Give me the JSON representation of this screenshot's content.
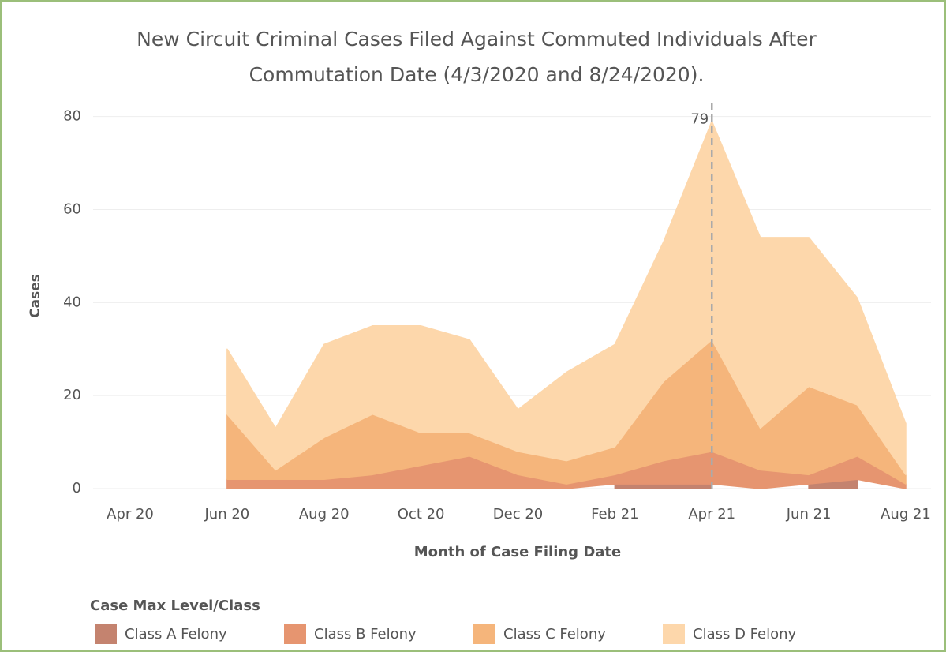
{
  "chart_data": {
    "type": "stacked_area",
    "title": "New Circuit Criminal Cases Filed Against Commuted Individuals After",
    "subtitle": "Commutation Date (4/3/2020 and 8/24/2020).",
    "x_label": "Month of Case Filing Date",
    "y_label": "Cases",
    "legend_title": "Case Max Level/Class",
    "categories": [
      "Apr 20",
      null,
      "Jun 20",
      null,
      "Aug 20",
      null,
      "Oct 20",
      null,
      "Dec 20",
      null,
      "Feb 21",
      null,
      "Apr 21",
      null,
      "Jun 21",
      null,
      "Aug 21"
    ],
    "series": [
      {
        "name": "Class A Felony",
        "color": "#c4836f",
        "values": [
          null,
          null,
          null,
          null,
          null,
          null,
          null,
          null,
          null,
          null,
          1,
          1,
          1,
          null,
          1,
          2,
          null
        ]
      },
      {
        "name": "Class B Felony",
        "color": "#e69570",
        "values": [
          null,
          null,
          2,
          2,
          2,
          3,
          5,
          7,
          3,
          1,
          2,
          5,
          7,
          4,
          2,
          5,
          1
        ]
      },
      {
        "name": "Class C Felony",
        "color": "#f5b57b",
        "values": [
          null,
          null,
          14,
          2,
          9,
          13,
          7,
          5,
          5,
          5,
          6,
          17,
          24,
          9,
          19,
          11,
          2
        ]
      },
      {
        "name": "Class D Felony",
        "color": "#fdd7ab",
        "values": [
          null,
          null,
          14,
          9,
          20,
          19,
          23,
          20,
          9,
          19,
          22,
          30,
          47,
          41,
          32,
          23,
          11
        ]
      }
    ],
    "annotation": {
      "category": "Apr 21",
      "value": 79
    },
    "ylim": [
      0,
      83
    ],
    "yticks": [
      0,
      20,
      40,
      60,
      80
    ],
    "grid": true
  }
}
